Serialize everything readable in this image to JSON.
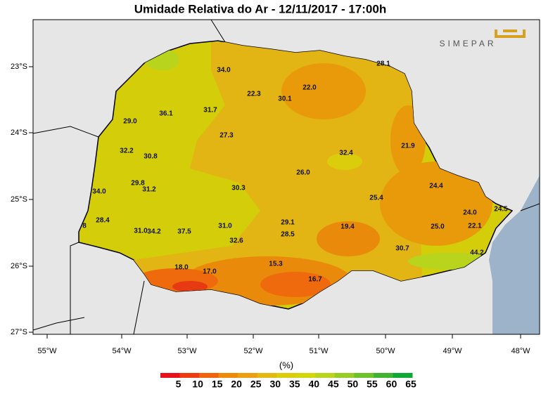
{
  "title": "Umidade Relativa do Ar - 12/11/2017 - 17:00h",
  "logo": "SIMEPAR",
  "stations": [
    "34.0",
    "22.3",
    "30.1",
    "22.0",
    "28.1",
    "36.1",
    "31.7",
    "29.0",
    "27.3",
    "21.9",
    "32.2",
    "30.8",
    "32.4",
    "26.0",
    "29.8",
    "31.2",
    "30.3",
    "24.4",
    "34.0",
    "25.4",
    "24.0",
    "24.5",
    "28.4",
    "29.1",
    "19.4",
    "25.0",
    "22.1",
    "8",
    "31.0",
    "34.2",
    "37.5",
    "31.0",
    "28.5",
    "32.6",
    "30.7",
    "44.2",
    "15.3",
    "18.0",
    "17.0",
    "16.7"
  ],
  "x_axis": [
    "55°W",
    "54°W",
    "53°W",
    "52°W",
    "51°W",
    "50°W",
    "49°W",
    "48°W"
  ],
  "y_axis": [
    "23°S",
    "24°S",
    "25°S",
    "26°S",
    "27°S"
  ],
  "colorbar": {
    "unit": "(%)",
    "ticks": [
      5,
      10,
      15,
      20,
      25,
      30,
      35,
      40,
      45,
      50,
      55,
      60,
      65
    ],
    "colors": [
      "#e8101a",
      "#ef3b12",
      "#f2640c",
      "#ef8a08",
      "#ec9f10",
      "#e4b812",
      "#dccd0c",
      "#d4d60c",
      "#b8d41c",
      "#96cc24",
      "#6ec22c",
      "#40b432",
      "#10a834"
    ]
  }
}
